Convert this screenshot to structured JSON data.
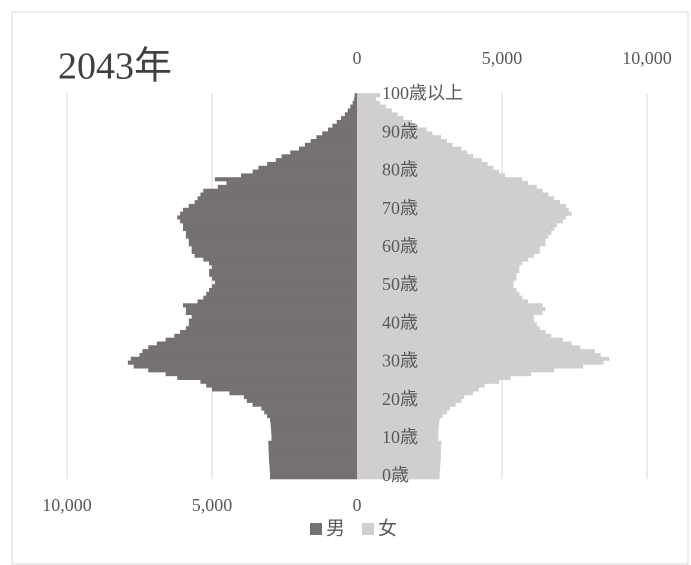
{
  "chart_data": {
    "type": "pyramid",
    "title": "2043年",
    "categories": [
      "0歳",
      null,
      null,
      null,
      null,
      null,
      null,
      null,
      null,
      null,
      "10歳",
      null,
      null,
      null,
      null,
      null,
      null,
      null,
      null,
      null,
      "20歳",
      null,
      null,
      null,
      null,
      null,
      null,
      null,
      null,
      null,
      "30歳",
      null,
      null,
      null,
      null,
      null,
      null,
      null,
      null,
      null,
      "40歳",
      null,
      null,
      null,
      null,
      null,
      null,
      null,
      null,
      null,
      "50歳",
      null,
      null,
      null,
      null,
      null,
      null,
      null,
      null,
      null,
      "60歳",
      null,
      null,
      null,
      null,
      null,
      null,
      null,
      null,
      null,
      "70歳",
      null,
      null,
      null,
      null,
      null,
      null,
      null,
      null,
      null,
      "80歳",
      null,
      null,
      null,
      null,
      null,
      null,
      null,
      null,
      null,
      "90歳",
      null,
      null,
      null,
      null,
      null,
      null,
      null,
      null,
      null,
      "100歳以上"
    ],
    "series": [
      {
        "name": "男",
        "color": "#767171",
        "values": [
          3000,
          3000,
          3010,
          3020,
          3030,
          3040,
          3040,
          3050,
          3050,
          3060,
          2950,
          2950,
          2960,
          2970,
          2980,
          3000,
          3100,
          3200,
          3300,
          3600,
          3800,
          3900,
          4400,
          5000,
          5200,
          5400,
          6200,
          6600,
          7200,
          7700,
          7900,
          7800,
          7500,
          7400,
          7200,
          6900,
          6600,
          6300,
          6100,
          5900,
          5800,
          5800,
          5700,
          5900,
          5900,
          6000,
          5500,
          5300,
          5200,
          5100,
          5000,
          4900,
          5000,
          5100,
          5100,
          5000,
          5100,
          5300,
          5600,
          5700,
          5700,
          5800,
          5800,
          5900,
          5900,
          6000,
          6000,
          6100,
          6200,
          6100,
          6000,
          5800,
          5600,
          5500,
          5400,
          5300,
          4800,
          4500,
          4900,
          4000,
          3600,
          3400,
          3100,
          2800,
          2600,
          2300,
          2000,
          1800,
          1600,
          1400,
          1200,
          1000,
          850,
          700,
          550,
          420,
          320,
          230,
          150,
          100,
          80
        ]
      },
      {
        "name": "女",
        "color": "#d0cece",
        "values": [
          2850,
          2850,
          2860,
          2870,
          2880,
          2890,
          2890,
          2900,
          2900,
          2910,
          2800,
          2800,
          2810,
          2820,
          2830,
          2850,
          2950,
          3100,
          3200,
          3400,
          3600,
          3700,
          4000,
          4200,
          4400,
          4900,
          5300,
          6000,
          6800,
          7800,
          8500,
          8700,
          8400,
          8200,
          7700,
          7400,
          7100,
          6700,
          6500,
          6300,
          6200,
          6100,
          6100,
          6400,
          6500,
          6400,
          5900,
          5700,
          5600,
          5500,
          5400,
          5400,
          5500,
          5500,
          5600,
          5600,
          5700,
          5900,
          6100,
          6300,
          6300,
          6500,
          6500,
          6600,
          6700,
          6800,
          6900,
          7100,
          7200,
          7400,
          7300,
          7200,
          7000,
          6800,
          6600,
          6400,
          6200,
          5900,
          5700,
          5100,
          4900,
          4700,
          4500,
          4300,
          4000,
          3800,
          3600,
          3300,
          3100,
          2900,
          2600,
          2400,
          2100,
          1900,
          1600,
          1400,
          1200,
          1000,
          800,
          650,
          800
        ]
      }
    ],
    "xlim": [
      0,
      10000
    ],
    "xticks": [
      0,
      {
        "value": 5000,
        "label": "5,000"
      },
      {
        "value": 10000,
        "label": "10,000"
      }
    ],
    "grid": true
  }
}
